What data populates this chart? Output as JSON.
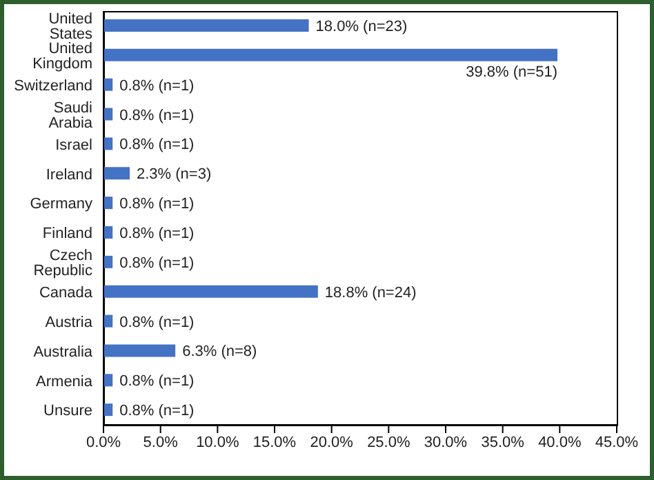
{
  "chart_data": {
    "type": "bar",
    "orientation": "horizontal",
    "categories": [
      "United States",
      "United Kingdom",
      "Switzerland",
      "Saudi Arabia",
      "Israel",
      "Ireland",
      "Germany",
      "Finland",
      "Czech Republic",
      "Canada",
      "Austria",
      "Australia",
      "Armenia",
      "Unsure"
    ],
    "values": [
      18.0,
      39.8,
      0.8,
      0.8,
      0.8,
      2.3,
      0.8,
      0.8,
      0.8,
      18.8,
      0.8,
      6.3,
      0.8,
      0.8
    ],
    "value_labels": [
      "18.0% (n=23)",
      "39.8% (n=51)",
      "0.8% (n=1)",
      "0.8% (n=1)",
      "0.8% (n=1)",
      "2.3% (n=3)",
      "0.8% (n=1)",
      "0.8% (n=1)",
      "0.8% (n=1)",
      "18.8% (n=24)",
      "0.8% (n=1)",
      "6.3% (n=8)",
      "0.8% (n=1)",
      "0.8% (n=1)"
    ],
    "color": "#4472c4",
    "xlim": [
      0,
      45
    ],
    "xticks": [
      {
        "value": 0,
        "label": "0.0%"
      },
      {
        "value": 5,
        "label": "5.0%"
      },
      {
        "value": 10,
        "label": "10.0%"
      },
      {
        "value": 15,
        "label": "15.0%"
      },
      {
        "value": 20,
        "label": "20.0%"
      },
      {
        "value": 25,
        "label": "25.0%"
      },
      {
        "value": 30,
        "label": "30.0%"
      },
      {
        "value": 35,
        "label": "35.0%"
      },
      {
        "value": 40,
        "label": "40.0%"
      },
      {
        "value": 45,
        "label": "45.0%"
      }
    ],
    "grid": false
  }
}
